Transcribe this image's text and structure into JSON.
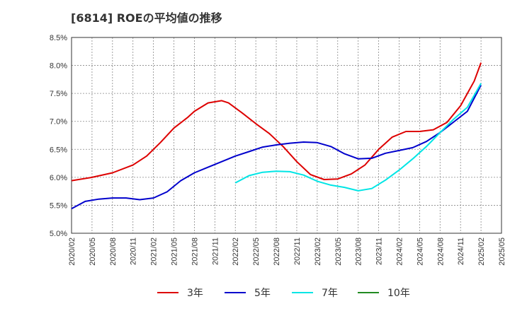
{
  "chart_data": {
    "type": "line",
    "title": "[6814]  ROEの平均値の推移",
    "xlabel": "",
    "ylabel": "",
    "ylim": [
      5.0,
      8.5
    ],
    "xlim": [
      "2020/02",
      "2025/05"
    ],
    "grid": true,
    "legend_position": "bottom",
    "y_ticks": [
      "5.0%",
      "5.5%",
      "6.0%",
      "6.5%",
      "7.0%",
      "7.5%",
      "8.0%",
      "8.5%"
    ],
    "x_ticks": [
      "2020/02",
      "2020/05",
      "2020/08",
      "2020/11",
      "2021/02",
      "2021/05",
      "2021/08",
      "2021/11",
      "2022/02",
      "2022/05",
      "2022/08",
      "2022/11",
      "2023/02",
      "2023/05",
      "2023/08",
      "2023/11",
      "2024/02",
      "2024/05",
      "2024/08",
      "2024/11",
      "2025/02",
      "2025/05"
    ],
    "series": [
      {
        "name": "3年",
        "color": "#dd0000",
        "points": [
          [
            "2020/02",
            5.94
          ],
          [
            "2020/05",
            6.0
          ],
          [
            "2020/08",
            6.08
          ],
          [
            "2020/11",
            6.22
          ],
          [
            "2021/01",
            6.38
          ],
          [
            "2021/03",
            6.62
          ],
          [
            "2021/05",
            6.88
          ],
          [
            "2021/07",
            7.07
          ],
          [
            "2021/08",
            7.18
          ],
          [
            "2021/10",
            7.33
          ],
          [
            "2021/12",
            7.37
          ],
          [
            "2022/01",
            7.33
          ],
          [
            "2022/03",
            7.15
          ],
          [
            "2022/05",
            6.96
          ],
          [
            "2022/07",
            6.78
          ],
          [
            "2022/09",
            6.55
          ],
          [
            "2022/11",
            6.28
          ],
          [
            "2023/01",
            6.05
          ],
          [
            "2023/03",
            5.96
          ],
          [
            "2023/05",
            5.97
          ],
          [
            "2023/07",
            6.06
          ],
          [
            "2023/09",
            6.22
          ],
          [
            "2023/11",
            6.5
          ],
          [
            "2024/01",
            6.72
          ],
          [
            "2024/03",
            6.82
          ],
          [
            "2024/05",
            6.82
          ],
          [
            "2024/07",
            6.85
          ],
          [
            "2024/09",
            6.98
          ],
          [
            "2024/11",
            7.28
          ],
          [
            "2025/01",
            7.72
          ],
          [
            "2025/02",
            8.05
          ]
        ]
      },
      {
        "name": "5年",
        "color": "#0000cc",
        "points": [
          [
            "2020/02",
            5.44
          ],
          [
            "2020/04",
            5.57
          ],
          [
            "2020/06",
            5.61
          ],
          [
            "2020/08",
            5.63
          ],
          [
            "2020/10",
            5.63
          ],
          [
            "2020/12",
            5.6
          ],
          [
            "2021/02",
            5.63
          ],
          [
            "2021/04",
            5.74
          ],
          [
            "2021/06",
            5.94
          ],
          [
            "2021/08",
            6.08
          ],
          [
            "2021/10",
            6.18
          ],
          [
            "2021/12",
            6.28
          ],
          [
            "2022/02",
            6.38
          ],
          [
            "2022/04",
            6.46
          ],
          [
            "2022/06",
            6.54
          ],
          [
            "2022/08",
            6.58
          ],
          [
            "2022/10",
            6.61
          ],
          [
            "2022/12",
            6.63
          ],
          [
            "2023/02",
            6.62
          ],
          [
            "2023/04",
            6.55
          ],
          [
            "2023/06",
            6.42
          ],
          [
            "2023/08",
            6.33
          ],
          [
            "2023/10",
            6.34
          ],
          [
            "2023/12",
            6.43
          ],
          [
            "2024/02",
            6.48
          ],
          [
            "2024/04",
            6.53
          ],
          [
            "2024/06",
            6.64
          ],
          [
            "2024/08",
            6.8
          ],
          [
            "2024/10",
            6.99
          ],
          [
            "2024/12",
            7.18
          ],
          [
            "2025/02",
            7.65
          ]
        ]
      },
      {
        "name": "7年",
        "color": "#00e5e5",
        "points": [
          [
            "2022/02",
            5.9
          ],
          [
            "2022/04",
            6.03
          ],
          [
            "2022/06",
            6.09
          ],
          [
            "2022/08",
            6.11
          ],
          [
            "2022/10",
            6.1
          ],
          [
            "2022/12",
            6.04
          ],
          [
            "2023/02",
            5.93
          ],
          [
            "2023/04",
            5.86
          ],
          [
            "2023/06",
            5.82
          ],
          [
            "2023/08",
            5.76
          ],
          [
            "2023/10",
            5.8
          ],
          [
            "2023/12",
            5.95
          ],
          [
            "2024/02",
            6.13
          ],
          [
            "2024/04",
            6.33
          ],
          [
            "2024/06",
            6.55
          ],
          [
            "2024/08",
            6.8
          ],
          [
            "2024/10",
            7.04
          ],
          [
            "2024/12",
            7.25
          ],
          [
            "2025/02",
            7.68
          ]
        ]
      },
      {
        "name": "10年",
        "color": "#228b22",
        "points": []
      }
    ]
  }
}
